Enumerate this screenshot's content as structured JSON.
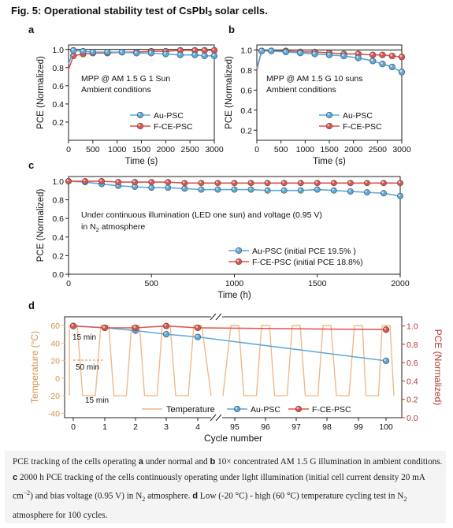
{
  "figure": {
    "title_main": "Fig. 5: Operational stability test of CsPbI",
    "title_sub": "3",
    "title_tail": " solar cells."
  },
  "colors": {
    "au": "#5aa9dd",
    "fce": "#e0524d",
    "temp": "#f0b98a",
    "line": "#777777"
  },
  "chart_data": [
    {
      "panel": "a",
      "type": "line",
      "xlabel": "Time (s)",
      "ylabel": "PCE (Normalized)",
      "xlim": [
        0,
        3000
      ],
      "ylim": [
        0,
        1.05
      ],
      "xticks": [
        0,
        500,
        1000,
        1500,
        2000,
        2500,
        3000
      ],
      "yticks": [
        0.2,
        0.4,
        0.6,
        0.8,
        1.0
      ],
      "annotation": [
        "MPP @ AM 1.5 G 1 Sun",
        "Ambient conditions"
      ],
      "legend_position": "lower-right",
      "series": [
        {
          "name": "Au-PSC",
          "color": "#5aa9dd",
          "x": [
            0,
            100,
            300,
            500,
            800,
            1100,
            1400,
            1700,
            2000,
            2300,
            2600,
            2800,
            3000
          ],
          "y": [
            0.84,
            0.99,
            0.98,
            0.97,
            0.97,
            0.97,
            0.96,
            0.96,
            0.95,
            0.94,
            0.94,
            0.93,
            0.93
          ]
        },
        {
          "name": "F-CE-PSC",
          "color": "#e0524d",
          "x": [
            0,
            100,
            300,
            500,
            800,
            1100,
            1400,
            1700,
            2000,
            2300,
            2600,
            2800,
            3000
          ],
          "y": [
            0.78,
            0.93,
            0.95,
            0.96,
            0.96,
            0.97,
            0.97,
            0.98,
            0.98,
            0.99,
            0.99,
            0.99,
            0.99
          ]
        }
      ]
    },
    {
      "panel": "b",
      "type": "line",
      "xlabel": "Time (s)",
      "ylabel": "PCE (Normalized)",
      "xlim": [
        0,
        3000
      ],
      "ylim": [
        0.1,
        1.05
      ],
      "xticks": [
        0,
        500,
        1000,
        1500,
        2000,
        2500,
        3000
      ],
      "yticks": [
        0.2,
        0.4,
        0.6,
        0.8,
        1.0
      ],
      "annotation": [
        "MPP @ AM 1.5 G 10 suns",
        "Ambient conditions"
      ],
      "legend_position": "lower-right",
      "series": [
        {
          "name": "Au-PSC",
          "color": "#5aa9dd",
          "x": [
            0,
            100,
            300,
            600,
            900,
            1200,
            1500,
            1800,
            2100,
            2400,
            2600,
            2800,
            3000
          ],
          "y": [
            0.82,
            0.99,
            0.99,
            0.98,
            0.97,
            0.96,
            0.95,
            0.94,
            0.92,
            0.89,
            0.86,
            0.83,
            0.78
          ]
        },
        {
          "name": "F-CE-PSC",
          "color": "#e0524d",
          "x": [
            0,
            100,
            300,
            600,
            900,
            1200,
            1500,
            1800,
            2100,
            2400,
            2600,
            2800,
            3000
          ],
          "y": [
            0.8,
            0.99,
            0.99,
            0.99,
            0.98,
            0.98,
            0.97,
            0.96,
            0.96,
            0.95,
            0.95,
            0.94,
            0.93
          ]
        }
      ]
    },
    {
      "panel": "c",
      "type": "line",
      "xlabel": "Time (h)",
      "ylabel": "PCE (Normalized)",
      "xlim": [
        0,
        2000
      ],
      "ylim": [
        0,
        1.05
      ],
      "xticks": [
        0,
        500,
        1000,
        1500,
        2000
      ],
      "yticks": [
        0.0,
        0.2,
        0.4,
        0.6,
        0.8,
        1.0
      ],
      "annotation": [
        "Under continuous illumination (LED one sun) and voltage (0.95 V)",
        "in N",
        "2",
        " atmosphere"
      ],
      "legend_position": "lower-right",
      "series": [
        {
          "name": "Au-PSC (initial PCE 19.5% )",
          "color": "#5aa9dd",
          "x": [
            0,
            100,
            200,
            300,
            400,
            500,
            600,
            700,
            800,
            900,
            1000,
            1100,
            1200,
            1300,
            1400,
            1500,
            1600,
            1700,
            1800,
            1900,
            2000
          ],
          "y": [
            1.0,
            0.99,
            0.97,
            0.95,
            0.94,
            0.93,
            0.93,
            0.92,
            0.91,
            0.91,
            0.91,
            0.91,
            0.9,
            0.9,
            0.9,
            0.91,
            0.9,
            0.89,
            0.88,
            0.87,
            0.84
          ]
        },
        {
          "name": "F-CE-PSC (initial PCE 18.8%)",
          "color": "#e0524d",
          "x": [
            0,
            100,
            200,
            300,
            400,
            500,
            600,
            700,
            800,
            900,
            1000,
            1100,
            1200,
            1300,
            1400,
            1500,
            1600,
            1700,
            1800,
            1900,
            2000
          ],
          "y": [
            1.0,
            1.0,
            1.0,
            0.99,
            0.99,
            0.99,
            0.99,
            0.98,
            0.98,
            0.98,
            0.98,
            0.98,
            0.98,
            0.98,
            0.98,
            0.98,
            0.98,
            0.98,
            0.98,
            0.98,
            0.98
          ]
        }
      ]
    },
    {
      "panel": "d",
      "type": "line",
      "xlabel": "Cycle number",
      "ylabel": "Temperature (°C)",
      "ylabel_right": "PCE (Normalized)",
      "xticks": [
        "0",
        "1",
        "2",
        "3",
        "4",
        "95",
        "96",
        "97",
        "98",
        "99",
        "100"
      ],
      "ylim": [
        -45,
        70
      ],
      "yticks": [
        -40,
        -20,
        0,
        20,
        40,
        60
      ],
      "ylim_right": [
        0,
        1.1
      ],
      "yticks_right": [
        0.0,
        0.2,
        0.4,
        0.6,
        0.8,
        1.0
      ],
      "annotations": [
        "15 min",
        "50 min",
        "15 min"
      ],
      "temperature_profile": {
        "high": 60,
        "low": -20
      },
      "legend_position": "bottom",
      "series": [
        {
          "name": "Temperature",
          "color": "#f0b98a",
          "axis": "left"
        },
        {
          "name": "Au-PSC",
          "color": "#5aa9dd",
          "axis": "right",
          "x": [
            0,
            1,
            2,
            3,
            4,
            100
          ],
          "y": [
            1.0,
            0.98,
            0.95,
            0.91,
            0.88,
            0.62
          ]
        },
        {
          "name": "F-CE-PSC",
          "color": "#e0524d",
          "axis": "right",
          "x": [
            0,
            1,
            2,
            3,
            4,
            100
          ],
          "y": [
            1.0,
            0.98,
            0.98,
            1.0,
            0.98,
            0.96
          ]
        }
      ]
    }
  ],
  "caption": {
    "part1": "PCE tracking of the cells operating ",
    "a": "a",
    "part2": " under normal and ",
    "b": "b",
    "part3": " 10× concentrated AM 1.5 G illumination in ambient conditions. ",
    "c": "c",
    "part4": " 2000 h PCE tracking of the cells continuously operating under light illumination (initial cell current density 20 mA cm",
    "sup": "−2",
    "part5": ") and bias voltage (0.95 V) in N",
    "sub1": "2",
    "part6": " atmosphere. ",
    "d": "d",
    "part7": " Low (-20 °C) - high (60 °C) temperature cycling test in N",
    "sub2": "2",
    "part8": " atmosphere for 100 cycles."
  }
}
